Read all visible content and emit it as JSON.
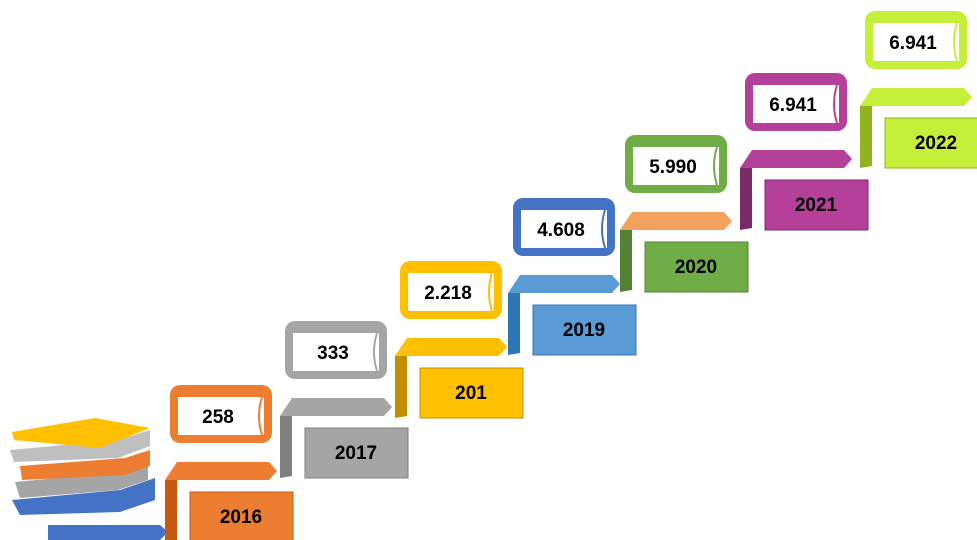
{
  "steps": [
    {
      "year": "2016",
      "value": "258"
    },
    {
      "year": "2017",
      "value": "333"
    },
    {
      "year": "201",
      "value": "2.218"
    },
    {
      "year": "2019",
      "value": "4.608"
    },
    {
      "year": "2020",
      "value": "5.990"
    },
    {
      "year": "2021",
      "value": "6.941"
    },
    {
      "year": "2022",
      "value": "6.941"
    }
  ]
}
